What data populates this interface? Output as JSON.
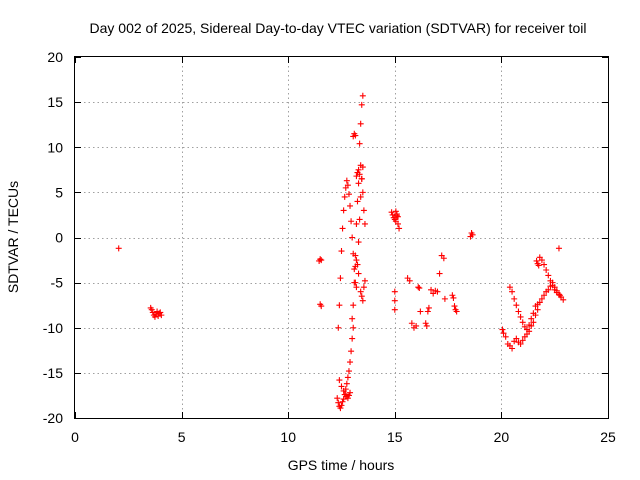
{
  "chart_data": {
    "type": "scatter",
    "title": "Day 002 of 2025, Sidereal Day-to-day VTEC variation (SDTVAR) for receiver toil",
    "xlabel": "GPS time / hours",
    "ylabel": "SDTVAR / TECUs",
    "xlim": [
      0,
      25
    ],
    "ylim": [
      -20,
      20
    ],
    "xticks": [
      0,
      5,
      10,
      15,
      20,
      25
    ],
    "yticks": [
      -20,
      -15,
      -10,
      -5,
      0,
      5,
      10,
      15,
      20
    ],
    "xtick_labels": [
      "0",
      "5",
      "10",
      "15",
      "20",
      "25"
    ],
    "ytick_labels": [
      "-20",
      "-15",
      "-10",
      "-5",
      "0",
      "5",
      "10",
      "15",
      "20"
    ],
    "grid": true,
    "marker": "+",
    "color": "#ff0000",
    "series": [
      {
        "x": [
          2.05,
          3.55,
          3.6,
          3.65,
          3.7,
          3.75,
          3.8,
          3.85,
          3.9,
          3.95,
          4.0,
          4.05,
          11.45,
          11.5,
          11.55,
          11.5,
          11.55,
          12.3,
          12.35,
          12.4,
          12.45,
          12.5,
          12.55,
          12.6,
          12.65,
          12.7,
          12.75,
          12.8,
          12.85,
          12.9,
          12.95,
          13.0,
          13.05,
          12.35,
          12.4,
          12.45,
          12.5,
          12.55,
          12.6,
          12.65,
          12.7,
          12.75,
          12.8,
          12.85,
          12.9,
          12.95,
          13.0,
          13.05,
          13.1,
          13.15,
          13.2,
          13.25,
          13.3,
          13.35,
          13.4,
          13.45,
          13.5,
          12.4,
          12.5,
          12.6,
          12.7,
          12.75,
          12.8,
          12.85,
          12.9,
          13.0,
          13.05,
          13.1,
          13.15,
          13.2,
          13.25,
          13.3,
          13.35,
          13.4,
          13.45,
          13.5,
          13.55,
          13.6,
          13.05,
          13.1,
          13.15,
          13.2,
          13.25,
          13.3,
          13.35,
          13.4,
          13.45,
          13.5,
          13.15,
          13.2,
          13.3,
          13.4,
          13.45,
          13.5,
          13.55,
          13.6,
          14.85,
          14.9,
          14.95,
          15.0,
          15.05,
          15.1,
          15.15,
          15.2,
          15.05,
          15.1,
          15.15,
          15.0,
          15.0,
          15.0,
          15.6,
          15.7,
          15.8,
          15.9,
          16.0,
          16.1,
          16.15,
          16.2,
          16.45,
          16.5,
          16.55,
          16.6,
          16.7,
          16.8,
          16.9,
          17.0,
          17.1,
          17.2,
          17.3,
          17.35,
          17.7,
          17.75,
          17.8,
          17.85,
          17.9,
          18.55,
          18.6,
          18.65,
          20.05,
          20.1,
          20.2,
          20.3,
          20.4,
          20.5,
          20.6,
          20.7,
          20.8,
          20.9,
          21.0,
          21.1,
          21.2,
          21.3,
          21.4,
          21.5,
          21.6,
          21.7,
          20.4,
          20.5,
          20.6,
          20.7,
          20.8,
          20.9,
          21.0,
          21.1,
          21.2,
          21.3,
          21.4,
          21.5,
          21.6,
          21.7,
          21.8,
          21.9,
          22.0,
          22.1,
          22.2,
          22.3,
          22.4,
          22.5,
          22.6,
          22.7,
          22.8,
          22.9,
          21.65,
          21.7,
          21.75,
          21.8,
          21.9,
          22.0,
          22.1,
          22.2,
          22.3,
          22.4,
          22.5,
          22.6,
          22.7,
          22.75
        ],
        "y": [
          -1.2,
          -7.8,
          -8.0,
          -8.3,
          -8.6,
          -8.8,
          -8.5,
          -8.2,
          -8.7,
          -8.4,
          -8.3,
          -8.6,
          -2.6,
          -2.4,
          -2.5,
          -7.4,
          -7.6,
          -17.8,
          -18.3,
          -18.7,
          -18.9,
          -18.6,
          -18.2,
          -17.9,
          -17.4,
          -16.8,
          -16.2,
          -15.5,
          -14.8,
          -13.8,
          -12.6,
          -11.2,
          -10.0,
          -10.0,
          -7.5,
          -4.5,
          -1.5,
          1.0,
          3.0,
          4.5,
          5.5,
          6.3,
          5.8,
          4.8,
          3.5,
          1.8,
          0.0,
          -1.8,
          -3.5,
          -5.0,
          -5.5,
          -3.0,
          -0.5,
          2.0,
          4.5,
          6.5,
          7.8,
          -15.8,
          -16.5,
          -17.0,
          -17.4,
          -17.6,
          -17.8,
          -17.5,
          -17.2,
          -9.0,
          -7.5,
          -5.0,
          -2.0,
          1.5,
          4.0,
          6.0,
          7.0,
          8.0,
          6.5,
          5.0,
          3.0,
          1.5,
          11.2,
          11.5,
          11.3,
          6.8,
          7.2,
          7.5,
          10.4,
          12.6,
          14.7,
          15.7,
          -3.2,
          -2.5,
          -4.0,
          -6.0,
          -6.5,
          -7.0,
          -5.5,
          -4.8,
          2.8,
          2.5,
          2.2,
          2.0,
          1.8,
          2.4,
          1.5,
          1.0,
          2.9,
          2.6,
          2.3,
          -6.0,
          -7.0,
          -8.0,
          -4.5,
          -4.8,
          -9.5,
          -10.0,
          -9.8,
          -5.5,
          -5.6,
          -8.2,
          -9.5,
          -9.8,
          -8.2,
          -7.8,
          -5.8,
          -6.2,
          -5.9,
          -6.0,
          -4.0,
          -2.0,
          -2.3,
          -6.8,
          -6.4,
          -6.7,
          -7.6,
          -8.0,
          -8.2,
          0.1,
          0.5,
          0.3,
          -10.2,
          -10.6,
          -11.0,
          -11.8,
          -12.0,
          -12.3,
          -11.5,
          -11.2,
          -11.6,
          -11.8,
          -11.4,
          -11.0,
          -10.7,
          -10.4,
          -9.8,
          -9.4,
          -8.6,
          -8.0,
          -5.5,
          -6.0,
          -6.8,
          -7.5,
          -8.2,
          -8.8,
          -9.4,
          -9.9,
          -10.2,
          -9.7,
          -9.0,
          -8.4,
          -7.6,
          -7.4,
          -7.2,
          -6.8,
          -6.4,
          -6.0,
          -5.8,
          -5.4,
          -5.0,
          -5.5,
          -5.9,
          -6.3,
          -6.6,
          -6.9,
          -2.6,
          -2.9,
          -3.1,
          -2.2,
          -2.5,
          -3.0,
          -3.6,
          -4.2,
          -4.8,
          -5.3,
          -5.8,
          -6.1,
          -1.2,
          -6.4
        ]
      }
    ]
  }
}
